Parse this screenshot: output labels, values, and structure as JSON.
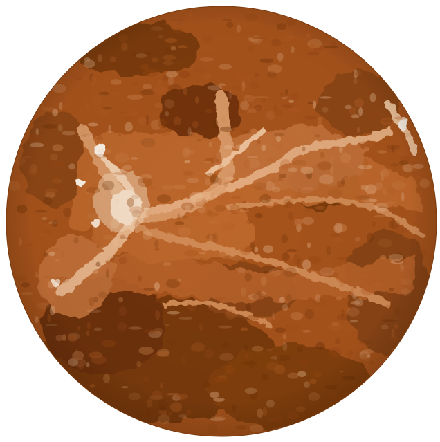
{
  "image": {
    "subject": "planet-venus-globe",
    "background_color": "#ffffff",
    "palette": {
      "deep": "#6e3308",
      "base": "#9a4a14",
      "mid": "#b8622a",
      "light": "#d18b55",
      "pale": "#ecc19a",
      "highlight": "#fbf0e4"
    }
  }
}
